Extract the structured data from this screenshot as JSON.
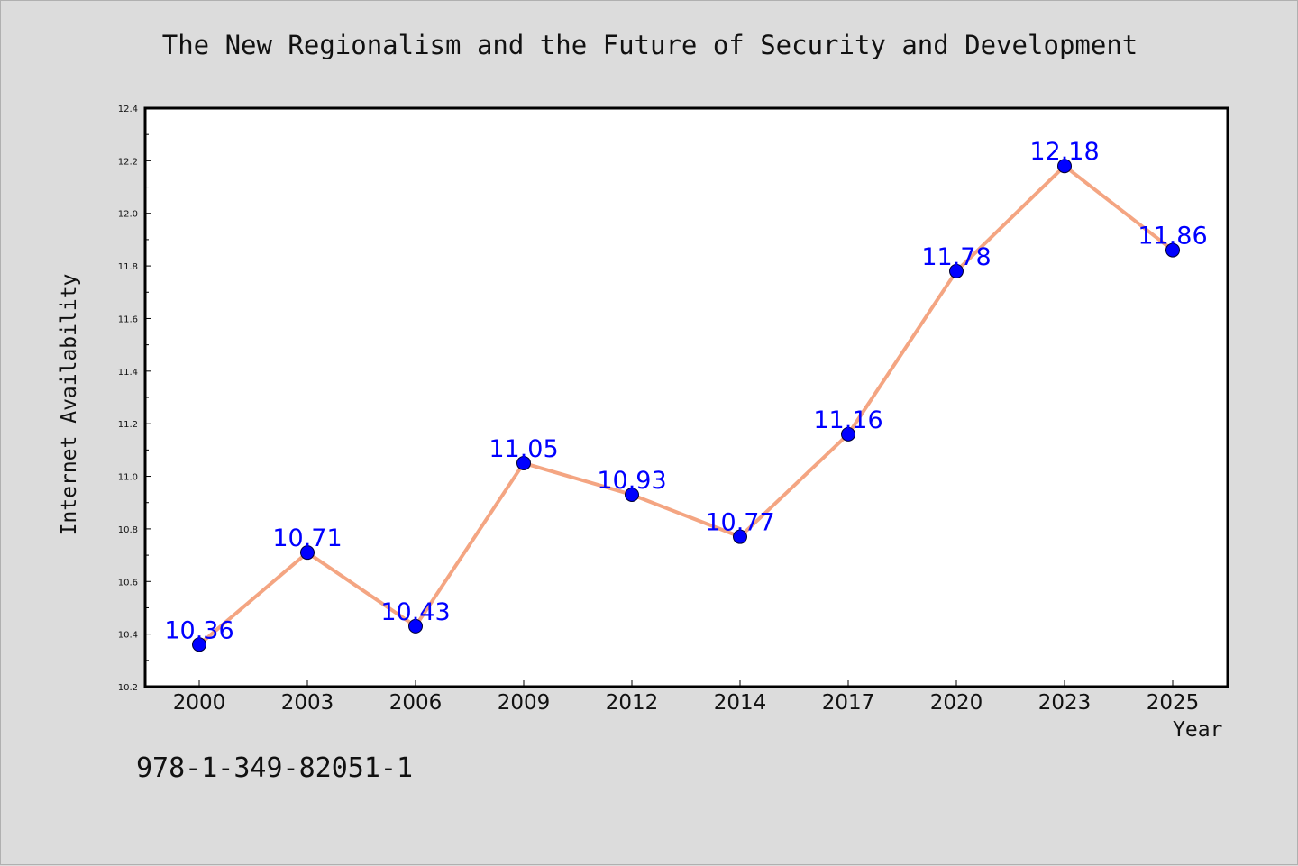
{
  "chart_data": {
    "type": "line",
    "title": "The New Regionalism and the Future of Security and Development",
    "xlabel": "Year",
    "ylabel": "Internet Availability",
    "categories": [
      "2000",
      "2003",
      "2006",
      "2009",
      "2012",
      "2014",
      "2017",
      "2020",
      "2023",
      "2025"
    ],
    "series": [
      {
        "values": [
          10.36,
          10.71,
          10.43,
          11.05,
          10.93,
          10.77,
          11.16,
          11.78,
          12.18,
          11.86
        ],
        "data_labels": [
          "10.36",
          "10.71",
          "10.43",
          "11.05",
          "10.93",
          "10.77",
          "11.16",
          "11.78",
          "12.18",
          "11.86"
        ],
        "line_color": "#f4a582",
        "marker_color": "#0000ff"
      }
    ],
    "ylim": [
      10.2,
      12.4
    ],
    "yticks": [
      "10.2",
      "10.4",
      "10.6",
      "10.8",
      "11.0",
      "11.2",
      "11.4",
      "11.6",
      "11.8",
      "12.0",
      "12.2",
      "12.4"
    ],
    "grid": false,
    "legend": "none",
    "label_color": "#0000ff",
    "plot_background": "#ffffff",
    "figure_background": "#dcdcdc"
  },
  "footer": {
    "isbn": "978-1-349-82051-1"
  }
}
